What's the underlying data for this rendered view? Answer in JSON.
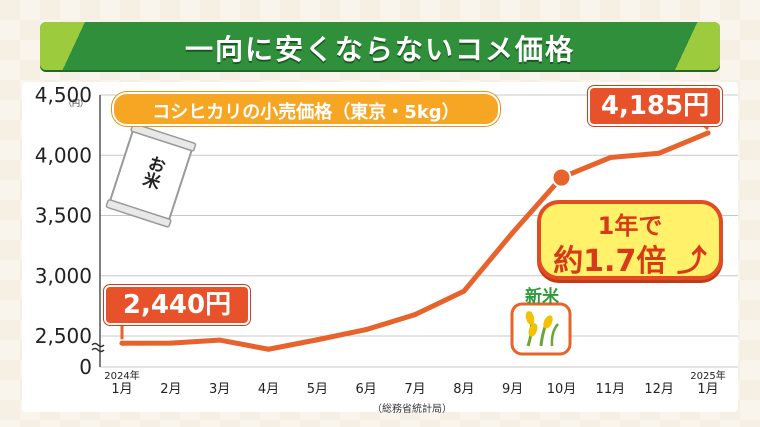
{
  "title": "一向に安くならないコメ価格",
  "subtitle": "コシヒカリの小売価格（東京・5kg）",
  "source": "（総務省統計局）",
  "annotations": {
    "start_value": "2,440円",
    "end_value": "4,185円",
    "ratio_line1": "1年で",
    "ratio_line2": "約1.7倍",
    "new_rice": "新米",
    "bag_label": "お米"
  },
  "colors": {
    "line": "#e8622b",
    "title_bg": "#2f8f3a",
    "subtitle_bg": "#f7a623",
    "callout_bg": "#e8522b",
    "ratio_bg": "#fff16a"
  },
  "chart_data": {
    "type": "line",
    "title": "コシヒカリの小売価格（東京・5kg）",
    "ylabel": "（円）",
    "xlabel": "",
    "categories": [
      "1月",
      "2月",
      "3月",
      "4月",
      "5月",
      "6月",
      "7月",
      "8月",
      "9月",
      "10月",
      "11月",
      "12月",
      "1月"
    ],
    "year_labels": [
      {
        "index": 0,
        "label": "2024年"
      },
      {
        "index": 12,
        "label": "2025年"
      }
    ],
    "values": [
      2440,
      2441,
      2466,
      2390,
      2469,
      2553,
      2677,
      2871,
      3358,
      3815,
      3981,
      4017,
      4185
    ],
    "highlight_index": 9,
    "yticks": [
      0,
      2500,
      3000,
      3500,
      4000,
      4500
    ],
    "ytick_labels": [
      "0",
      "2,500",
      "3,000",
      "3,500",
      "4,000",
      "4,500"
    ],
    "ylim": [
      2350,
      4500
    ],
    "axis_break": true,
    "grid": true
  }
}
